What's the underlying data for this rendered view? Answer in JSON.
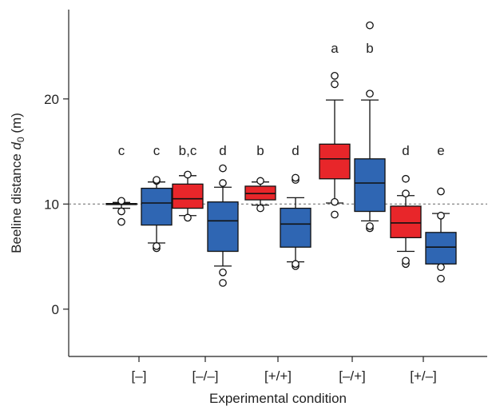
{
  "chart_data": {
    "type": "box",
    "xlabel": "Experimental condition",
    "ylabel_main": "Beeline distance ",
    "ylabel_symbol": "d",
    "ylabel_sub": "0",
    "ylabel_unit": " (m)",
    "ylim": [
      -4.5,
      28.5
    ],
    "yticks": [
      0,
      10,
      20
    ],
    "reference_line": 10,
    "categories": [
      "[–]",
      "[–/–]",
      "[+/+]",
      "[–/+]",
      "[+/–]"
    ],
    "colors": {
      "red": "#e8262a",
      "blue": "#2f66b3"
    },
    "boxes": [
      {
        "category": "[–]",
        "color": "red",
        "letter": "c",
        "whisker_low": 9.6,
        "q1": 9.95,
        "median": 10.0,
        "q3": 10.05,
        "whisker_high": 10.15,
        "outliers": [
          8.3,
          9.3,
          10.3
        ]
      },
      {
        "category": "[–]",
        "color": "blue",
        "letter": "c",
        "whisker_low": 6.3,
        "q1": 8.0,
        "median": 10.1,
        "q3": 11.5,
        "whisker_high": 12.1,
        "outliers": [
          5.8,
          6.0,
          12.2,
          12.3
        ]
      },
      {
        "category": "[–/–]",
        "color": "red",
        "letter": "b,c",
        "whisker_low": 8.9,
        "q1": 9.6,
        "median": 10.5,
        "q3": 11.9,
        "whisker_high": 12.7,
        "outliers": [
          8.7,
          12.8
        ]
      },
      {
        "category": "[–/–]",
        "color": "blue",
        "letter": "d",
        "whisker_low": 4.1,
        "q1": 5.5,
        "median": 8.4,
        "q3": 10.2,
        "whisker_high": 11.6,
        "outliers": [
          2.5,
          3.5,
          12.0,
          13.4
        ]
      },
      {
        "category": "[+/+]",
        "color": "red",
        "letter": "b",
        "whisker_low": 9.9,
        "q1": 10.4,
        "median": 11.0,
        "q3": 11.7,
        "whisker_high": 12.1,
        "outliers": [
          9.6,
          12.2
        ]
      },
      {
        "category": "[+/+]",
        "color": "blue",
        "letter": "d",
        "whisker_low": 4.5,
        "q1": 5.9,
        "median": 8.1,
        "q3": 9.6,
        "whisker_high": 10.6,
        "outliers": [
          4.1,
          4.3,
          12.3,
          12.5
        ]
      },
      {
        "category": "[–/+]",
        "color": "red",
        "letter": "a",
        "whisker_low": 10.1,
        "q1": 12.4,
        "median": 14.3,
        "q3": 15.7,
        "whisker_high": 19.9,
        "outliers": [
          9.0,
          10.2,
          21.4,
          22.2
        ]
      },
      {
        "category": "[–/+]",
        "color": "blue",
        "letter": "b",
        "whisker_low": 8.4,
        "q1": 9.3,
        "median": 12.0,
        "q3": 14.3,
        "whisker_high": 19.9,
        "outliers": [
          7.7,
          7.9,
          20.5,
          27.0
        ]
      },
      {
        "category": "[+/–]",
        "color": "red",
        "letter": "d",
        "whisker_low": 5.5,
        "q1": 6.8,
        "median": 8.2,
        "q3": 9.8,
        "whisker_high": 10.8,
        "outliers": [
          4.3,
          4.6,
          11.0,
          12.4
        ]
      },
      {
        "category": "[+/–]",
        "color": "blue",
        "letter": "e",
        "whisker_low": 4.3,
        "q1": 4.3,
        "median": 5.9,
        "q3": 7.3,
        "whisker_high": 9.1,
        "outliers": [
          2.9,
          4.0,
          8.9,
          11.2
        ]
      }
    ]
  }
}
